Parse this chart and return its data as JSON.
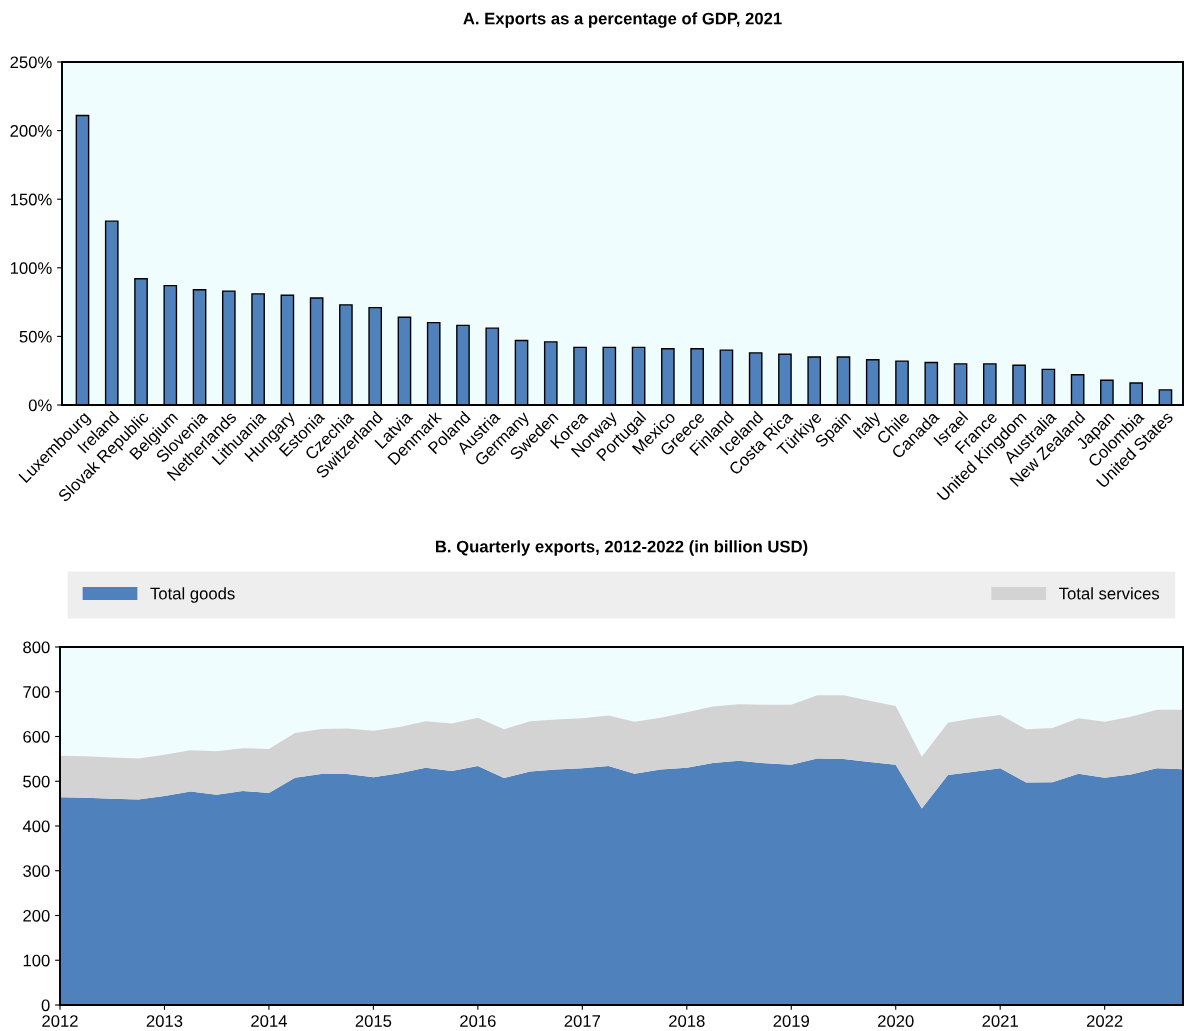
{
  "chart_data": [
    {
      "type": "bar",
      "title": "A. Exports as a percentage of GDP, 2021",
      "categories": [
        "Luxembourg",
        "Ireland",
        "Slovak Republic",
        "Belgium",
        "Slovenia",
        "Netherlands",
        "Lithuania",
        "Hungary",
        "Estonia",
        "Czechia",
        "Switzerland",
        "Latvia",
        "Denmark",
        "Poland",
        "Austria",
        "Germany",
        "Sweden",
        "Korea",
        "Norway",
        "Portugal",
        "Mexico",
        "Greece",
        "Finland",
        "Iceland",
        "Costa Rica",
        "Türkiye",
        "Spain",
        "Italy",
        "Chile",
        "Canada",
        "Israel",
        "France",
        "United Kingdom",
        "Australia",
        "New Zealand",
        "Japan",
        "Colombia",
        "United States"
      ],
      "values": [
        211,
        134,
        92,
        87,
        84,
        83,
        81,
        80,
        78,
        73,
        71,
        64,
        60,
        58,
        56,
        47,
        46,
        42,
        42,
        42,
        41,
        41,
        40,
        38,
        37,
        35,
        35,
        33,
        32,
        31,
        30,
        30,
        29,
        26,
        22,
        18,
        16,
        11
      ],
      "color": "#4f81bd",
      "ylim": [
        0,
        250
      ],
      "yticks": [
        {
          "value": 0,
          "label": "0%"
        },
        {
          "value": 50,
          "label": "50%"
        },
        {
          "value": 100,
          "label": "100%"
        },
        {
          "value": 150,
          "label": "150%"
        },
        {
          "value": 200,
          "label": "200%"
        },
        {
          "value": 250,
          "label": "250%"
        }
      ],
      "grid": false
    },
    {
      "type": "area",
      "stacked": true,
      "title": "B. Quarterly exports, 2012-2022 (in billion USD)",
      "x": [
        2012,
        2012.25,
        2012.5,
        2012.75,
        2013,
        2013.25,
        2013.5,
        2013.75,
        2014,
        2014.25,
        2014.5,
        2014.75,
        2015,
        2015.25,
        2015.5,
        2015.75,
        2016,
        2016.25,
        2016.5,
        2016.75,
        2017,
        2017.25,
        2017.5,
        2017.75,
        2018,
        2018.25,
        2018.5,
        2018.75,
        2019,
        2019.25,
        2019.5,
        2019.75,
        2020,
        2020.25,
        2020.5,
        2020.75,
        2021,
        2021.25,
        2021.5,
        2021.75,
        2022,
        2022.25,
        2022.5,
        2022.75
      ],
      "series": [
        {
          "name": "Total goods",
          "color": "#4f81bd",
          "values": [
            464,
            463,
            461,
            459,
            467,
            477,
            470,
            478,
            474,
            508,
            516,
            516,
            509,
            518,
            530,
            523,
            534,
            507,
            522,
            526,
            529,
            534,
            517,
            526,
            530,
            541,
            546,
            540,
            537,
            551,
            550,
            543,
            537,
            439,
            514,
            521,
            529,
            497,
            498,
            517,
            508,
            515,
            529,
            527
          ]
        },
        {
          "name": "Total services",
          "color": "#d3d3d3",
          "values": [
            93,
            93,
            92,
            92,
            92,
            92,
            97,
            96,
            98,
            100,
            101,
            102,
            104,
            103,
            104,
            106,
            108,
            109,
            112,
            112,
            112,
            113,
            116,
            116,
            124,
            126,
            126,
            131,
            134,
            141,
            142,
            137,
            131,
            116,
            117,
            120,
            119,
            119,
            121,
            124,
            125,
            129,
            131,
            133
          ]
        }
      ],
      "xlim": [
        2012,
        2022.75
      ],
      "xticks": [
        2012,
        2013,
        2014,
        2015,
        2016,
        2017,
        2018,
        2019,
        2020,
        2021,
        2022
      ],
      "ylim": [
        0,
        800
      ],
      "yticks": [
        0,
        100,
        200,
        300,
        400,
        500,
        600,
        700,
        800
      ],
      "grid": false,
      "legend": "top"
    }
  ]
}
